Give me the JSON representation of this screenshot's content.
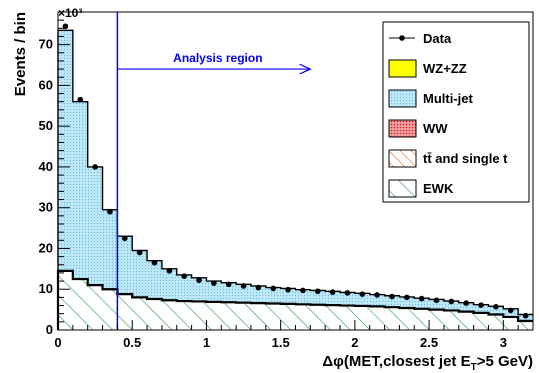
{
  "chart_data": {
    "type": "histogram",
    "xlabel": "Δφ(MET,closest jet E",
    "xlabel_sub": "T",
    "xlabel_tail": ">5 GeV)",
    "ylabel": "Events / bin",
    "exponent_label": "×10³",
    "y_scale_factor": 1000,
    "xlim": [
      0,
      3.2
    ],
    "ylim": [
      0,
      78
    ],
    "x_ticks": [
      0,
      0.5,
      1,
      1.5,
      2,
      2.5,
      3
    ],
    "x_tick_labels": [
      "0",
      "0.5",
      "1",
      "1.5",
      "2",
      "2.5",
      "3"
    ],
    "y_ticks": [
      0,
      10,
      20,
      30,
      40,
      50,
      60,
      70
    ],
    "y_tick_labels": [
      "0",
      "10",
      "20",
      "30",
      "40",
      "50",
      "60",
      "70"
    ],
    "bin_width": 0.1,
    "bin_edges_start": 0,
    "total_stack": [
      73.5,
      56,
      40,
      29.5,
      23,
      19.5,
      17,
      15,
      13.5,
      12.8,
      12,
      11.6,
      11.2,
      10.8,
      10.4,
      10.2,
      9.9,
      9.7,
      9.5,
      9.2,
      9,
      8.7,
      8.4,
      8.1,
      7.8,
      7.5,
      7.1,
      6.7,
      6.2,
      5.8,
      5.2,
      3.8
    ],
    "ewk": [
      14.5,
      12.5,
      11,
      10,
      8.8,
      8,
      7.6,
      7.3,
      7.1,
      7,
      6.9,
      6.8,
      6.7,
      6.6,
      6.5,
      6.4,
      6.3,
      6.2,
      6.1,
      6,
      5.9,
      5.8,
      5.6,
      5.4,
      5.2,
      5,
      4.8,
      4.5,
      4.2,
      3.8,
      3.2,
      2.2
    ],
    "data_points": [
      {
        "x": 0.05,
        "y": 74.5
      },
      {
        "x": 0.15,
        "y": 56.5
      },
      {
        "x": 0.25,
        "y": 40
      },
      {
        "x": 0.35,
        "y": 29
      },
      {
        "x": 0.45,
        "y": 22.5
      },
      {
        "x": 0.55,
        "y": 19
      },
      {
        "x": 0.65,
        "y": 16.5
      },
      {
        "x": 0.75,
        "y": 14.5
      },
      {
        "x": 0.85,
        "y": 13.2
      },
      {
        "x": 0.95,
        "y": 12.2
      },
      {
        "x": 1.05,
        "y": 11.5
      },
      {
        "x": 1.15,
        "y": 11.2
      },
      {
        "x": 1.25,
        "y": 10.8
      },
      {
        "x": 1.35,
        "y": 10.4
      },
      {
        "x": 1.45,
        "y": 10.2
      },
      {
        "x": 1.55,
        "y": 9.9
      },
      {
        "x": 1.65,
        "y": 9.7
      },
      {
        "x": 1.75,
        "y": 9.5
      },
      {
        "x": 1.85,
        "y": 9.3
      },
      {
        "x": 1.95,
        "y": 9.1
      },
      {
        "x": 2.05,
        "y": 8.8
      },
      {
        "x": 2.15,
        "y": 8.6
      },
      {
        "x": 2.25,
        "y": 8.2
      },
      {
        "x": 2.35,
        "y": 8
      },
      {
        "x": 2.45,
        "y": 7.7
      },
      {
        "x": 2.55,
        "y": 7.3
      },
      {
        "x": 2.65,
        "y": 7
      },
      {
        "x": 2.75,
        "y": 6.6
      },
      {
        "x": 2.85,
        "y": 6.1
      },
      {
        "x": 2.95,
        "y": 5.7
      },
      {
        "x": 3.05,
        "y": 4.8
      },
      {
        "x": 3.15,
        "y": 3.5
      }
    ],
    "cut_line_x": 0.4,
    "annotation": {
      "text": "Analysis region",
      "arrow_x_start": 0.4,
      "arrow_x_end": 1.7,
      "arrow_y": 64,
      "color": "#0000ff"
    },
    "colors": {
      "multijet_fill": "#bde8f7",
      "multijet_dots": "#6fb7e8",
      "ewk_hatch": "#2e9a45",
      "ww_fill": "#e8302f",
      "wzzz_fill": "#ffff00",
      "ttbar_hatch": "#e07020",
      "cut_line": "#0000ff"
    },
    "legend": {
      "placement": "top-right",
      "entries": [
        {
          "label": "Data",
          "style": "marker"
        },
        {
          "label": "WZ+ZZ",
          "style": "solid-yellow"
        },
        {
          "label": "Multi-jet",
          "style": "dotted-blue"
        },
        {
          "label": "WW",
          "style": "dotted-red"
        },
        {
          "label": "tt̄ and single t",
          "style": "hatch-orange"
        },
        {
          "label": "EWK",
          "style": "hatch-green"
        }
      ]
    }
  }
}
